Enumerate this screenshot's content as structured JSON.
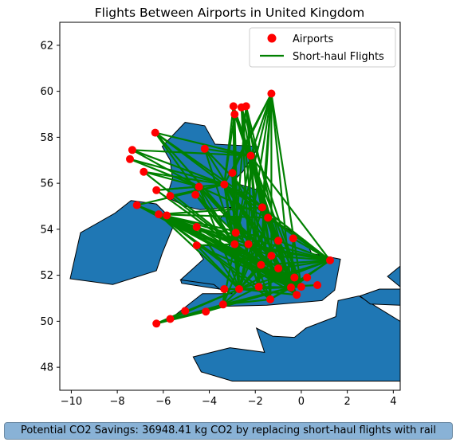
{
  "chart_data": {
    "type": "map",
    "title": "Flights Between Airports in United Kingdom",
    "xlim": [
      -10.5,
      4.3
    ],
    "ylim": [
      47,
      63
    ],
    "x_ticks": [
      -10,
      -8,
      -6,
      -4,
      -2,
      0,
      2,
      4
    ],
    "x_tick_labels": [
      "−10",
      "−8",
      "−6",
      "−4",
      "−2",
      "0",
      "2",
      "4"
    ],
    "y_ticks": [
      48,
      50,
      52,
      54,
      56,
      58,
      60,
      62
    ],
    "y_tick_labels": [
      "48",
      "50",
      "52",
      "54",
      "56",
      "58",
      "60",
      "62"
    ],
    "legend": {
      "position": "upper-right",
      "entries": [
        {
          "label": "Airports",
          "marker": "circle",
          "color": "#ff0000"
        },
        {
          "label": "Short-haul Flights",
          "marker": "line",
          "color": "#008000"
        }
      ]
    },
    "land_color": "#1f77b4",
    "marker_color": "#ff0000",
    "line_color": "#008000",
    "airports": [
      {
        "x": -1.3,
        "y": 59.9
      },
      {
        "x": -2.95,
        "y": 59.35
      },
      {
        "x": -2.6,
        "y": 59.3
      },
      {
        "x": -2.4,
        "y": 59.35
      },
      {
        "x": -2.9,
        "y": 59.0
      },
      {
        "x": -6.35,
        "y": 58.2
      },
      {
        "x": -7.35,
        "y": 57.45
      },
      {
        "x": -7.45,
        "y": 57.05
      },
      {
        "x": -6.85,
        "y": 56.5
      },
      {
        "x": -4.2,
        "y": 57.5
      },
      {
        "x": -2.2,
        "y": 57.2
      },
      {
        "x": -3.0,
        "y": 56.45
      },
      {
        "x": -6.3,
        "y": 55.7
      },
      {
        "x": -5.7,
        "y": 55.45
      },
      {
        "x": -4.45,
        "y": 55.85
      },
      {
        "x": -4.6,
        "y": 55.5
      },
      {
        "x": -3.35,
        "y": 55.95
      },
      {
        "x": -7.15,
        "y": 55.05
      },
      {
        "x": -6.2,
        "y": 54.65
      },
      {
        "x": -5.85,
        "y": 54.6
      },
      {
        "x": -1.7,
        "y": 54.95
      },
      {
        "x": -1.45,
        "y": 54.5
      },
      {
        "x": -4.55,
        "y": 54.1
      },
      {
        "x": -2.85,
        "y": 53.85
      },
      {
        "x": -2.9,
        "y": 53.35
      },
      {
        "x": -2.3,
        "y": 53.35
      },
      {
        "x": -1.0,
        "y": 53.5
      },
      {
        "x": -0.35,
        "y": 53.6
      },
      {
        "x": -4.55,
        "y": 53.3
      },
      {
        "x": -1.3,
        "y": 52.85
      },
      {
        "x": -1.75,
        "y": 52.45
      },
      {
        "x": 1.25,
        "y": 52.65
      },
      {
        "x": -1.0,
        "y": 52.3
      },
      {
        "x": -0.3,
        "y": 51.9
      },
      {
        "x": 0.25,
        "y": 51.9
      },
      {
        "x": 0.0,
        "y": 51.5
      },
      {
        "x": -0.45,
        "y": 51.47
      },
      {
        "x": 0.7,
        "y": 51.57
      },
      {
        "x": -0.2,
        "y": 51.15
      },
      {
        "x": -3.35,
        "y": 51.4
      },
      {
        "x": -2.7,
        "y": 51.4
      },
      {
        "x": -1.85,
        "y": 51.5
      },
      {
        "x": -1.35,
        "y": 50.95
      },
      {
        "x": -3.4,
        "y": 50.73
      },
      {
        "x": -4.15,
        "y": 50.42
      },
      {
        "x": -5.05,
        "y": 50.45
      },
      {
        "x": -5.7,
        "y": 50.1
      },
      {
        "x": -6.3,
        "y": 49.9
      }
    ],
    "flights": [
      [
        0,
        10
      ],
      [
        0,
        16
      ],
      [
        0,
        24
      ],
      [
        0,
        25
      ],
      [
        0,
        29
      ],
      [
        0,
        35
      ],
      [
        0,
        36
      ],
      [
        0,
        41
      ],
      [
        0,
        20
      ],
      [
        0,
        11
      ],
      [
        1,
        10
      ],
      [
        1,
        24
      ],
      [
        1,
        36
      ],
      [
        1,
        40
      ],
      [
        1,
        16
      ],
      [
        2,
        10
      ],
      [
        2,
        25
      ],
      [
        2,
        35
      ],
      [
        2,
        41
      ],
      [
        3,
        10
      ],
      [
        3,
        24
      ],
      [
        3,
        36
      ],
      [
        3,
        29
      ],
      [
        4,
        16
      ],
      [
        4,
        24
      ],
      [
        4,
        36
      ],
      [
        4,
        40
      ],
      [
        5,
        10
      ],
      [
        5,
        16
      ],
      [
        5,
        24
      ],
      [
        5,
        36
      ],
      [
        5,
        20
      ],
      [
        6,
        14
      ],
      [
        6,
        16
      ],
      [
        6,
        10
      ],
      [
        7,
        14
      ],
      [
        7,
        16
      ],
      [
        8,
        14
      ],
      [
        8,
        16
      ],
      [
        8,
        36
      ],
      [
        9,
        10
      ],
      [
        9,
        24
      ],
      [
        9,
        36
      ],
      [
        9,
        20
      ],
      [
        10,
        24
      ],
      [
        10,
        25
      ],
      [
        10,
        35
      ],
      [
        10,
        36
      ],
      [
        10,
        41
      ],
      [
        10,
        31
      ],
      [
        10,
        26
      ],
      [
        10,
        29
      ],
      [
        10,
        30
      ],
      [
        10,
        20
      ],
      [
        10,
        21
      ],
      [
        11,
        24
      ],
      [
        11,
        36
      ],
      [
        11,
        40
      ],
      [
        12,
        14
      ],
      [
        12,
        16
      ],
      [
        12,
        36
      ],
      [
        13,
        36
      ],
      [
        13,
        16
      ],
      [
        14,
        24
      ],
      [
        14,
        36
      ],
      [
        14,
        40
      ],
      [
        14,
        35
      ],
      [
        14,
        29
      ],
      [
        14,
        21
      ],
      [
        15,
        36
      ],
      [
        15,
        24
      ],
      [
        16,
        24
      ],
      [
        16,
        25
      ],
      [
        16,
        36
      ],
      [
        16,
        35
      ],
      [
        16,
        41
      ],
      [
        16,
        31
      ],
      [
        16,
        29
      ],
      [
        16,
        40
      ],
      [
        16,
        20
      ],
      [
        17,
        18
      ],
      [
        17,
        24
      ],
      [
        17,
        36
      ],
      [
        17,
        16
      ],
      [
        18,
        24
      ],
      [
        18,
        25
      ],
      [
        18,
        29
      ],
      [
        18,
        35
      ],
      [
        18,
        36
      ],
      [
        18,
        40
      ],
      [
        18,
        41
      ],
      [
        18,
        30
      ],
      [
        18,
        26
      ],
      [
        18,
        31
      ],
      [
        18,
        21
      ],
      [
        18,
        20
      ],
      [
        18,
        42
      ],
      [
        18,
        38
      ],
      [
        18,
        33
      ],
      [
        19,
        36
      ],
      [
        19,
        24
      ],
      [
        19,
        35
      ],
      [
        20,
        36
      ],
      [
        20,
        35
      ],
      [
        20,
        40
      ],
      [
        20,
        42
      ],
      [
        20,
        38
      ],
      [
        20,
        31
      ],
      [
        21,
        36
      ],
      [
        21,
        35
      ],
      [
        21,
        40
      ],
      [
        21,
        31
      ],
      [
        22,
        24
      ],
      [
        22,
        36
      ],
      [
        22,
        40
      ],
      [
        24,
        36
      ],
      [
        24,
        35
      ],
      [
        24,
        31
      ],
      [
        24,
        40
      ],
      [
        24,
        42
      ],
      [
        24,
        38
      ],
      [
        24,
        43
      ],
      [
        25,
        36
      ],
      [
        25,
        35
      ],
      [
        25,
        40
      ],
      [
        25,
        42
      ],
      [
        25,
        38
      ],
      [
        25,
        31
      ],
      [
        25,
        43
      ],
      [
        26,
        36
      ],
      [
        26,
        35
      ],
      [
        26,
        40
      ],
      [
        26,
        31
      ],
      [
        27,
        36
      ],
      [
        27,
        31
      ],
      [
        28,
        36
      ],
      [
        28,
        24
      ],
      [
        28,
        40
      ],
      [
        29,
        36
      ],
      [
        29,
        35
      ],
      [
        29,
        31
      ],
      [
        29,
        40
      ],
      [
        29,
        42
      ],
      [
        30,
        36
      ],
      [
        30,
        35
      ],
      [
        30,
        31
      ],
      [
        30,
        40
      ],
      [
        30,
        38
      ],
      [
        31,
        36
      ],
      [
        31,
        40
      ],
      [
        31,
        41
      ],
      [
        31,
        42
      ],
      [
        32,
        36
      ],
      [
        32,
        40
      ],
      [
        32,
        31
      ],
      [
        33,
        36
      ],
      [
        34,
        36
      ],
      [
        35,
        40
      ],
      [
        36,
        40
      ],
      [
        36,
        41
      ],
      [
        36,
        42
      ],
      [
        36,
        43
      ],
      [
        36,
        44
      ],
      [
        36,
        47
      ],
      [
        37,
        40
      ],
      [
        38,
        40
      ],
      [
        39,
        40
      ],
      [
        40,
        43
      ],
      [
        40,
        47
      ],
      [
        40,
        46
      ],
      [
        41,
        43
      ],
      [
        42,
        43
      ],
      [
        43,
        47
      ],
      [
        44,
        47
      ],
      [
        45,
        47
      ],
      [
        46,
        47
      ],
      [
        39,
        43
      ]
    ]
  },
  "footer_text": "Potential CO2 Savings: 36948.41 kg CO2 by replacing short-haul flights with rail"
}
